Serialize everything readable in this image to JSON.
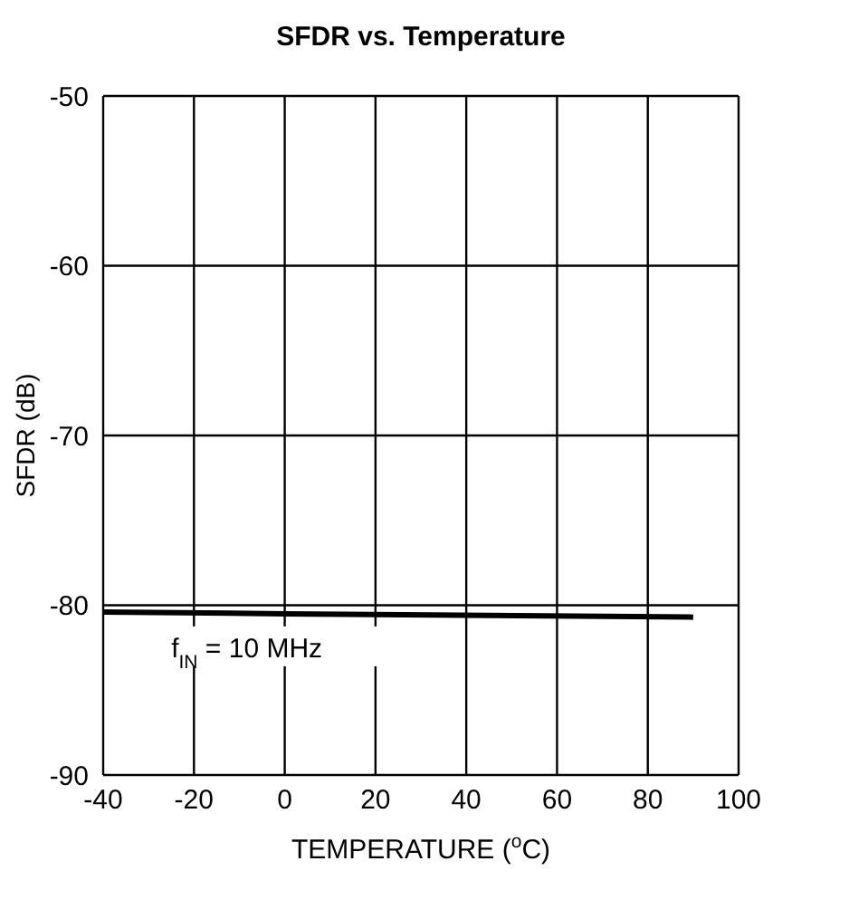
{
  "chart_data": {
    "type": "line",
    "title": "SFDR vs. Temperature",
    "xlabel": "TEMPERATURE ($^{o}$C)",
    "ylabel": "SFDR (dB)",
    "x": [
      -40,
      0,
      45,
      90
    ],
    "series": [
      {
        "color": "#000000",
        "values": [
          -80.4,
          -80.5,
          -80.6,
          -80.7
        ]
      }
    ],
    "annotations": [
      {
        "text": "f$_{IN}$ = 10 MHz",
        "x": -25,
        "y": -80.5
      }
    ],
    "xlim": [
      -40,
      100
    ],
    "xticks": [
      -40,
      -20,
      0,
      20,
      40,
      60,
      80,
      100
    ],
    "ylim": [
      -90,
      -50
    ],
    "yticks": [
      -90,
      -80,
      -70,
      -60,
      -50
    ],
    "grid": true,
    "marker": "none",
    "line_style": "solid"
  }
}
